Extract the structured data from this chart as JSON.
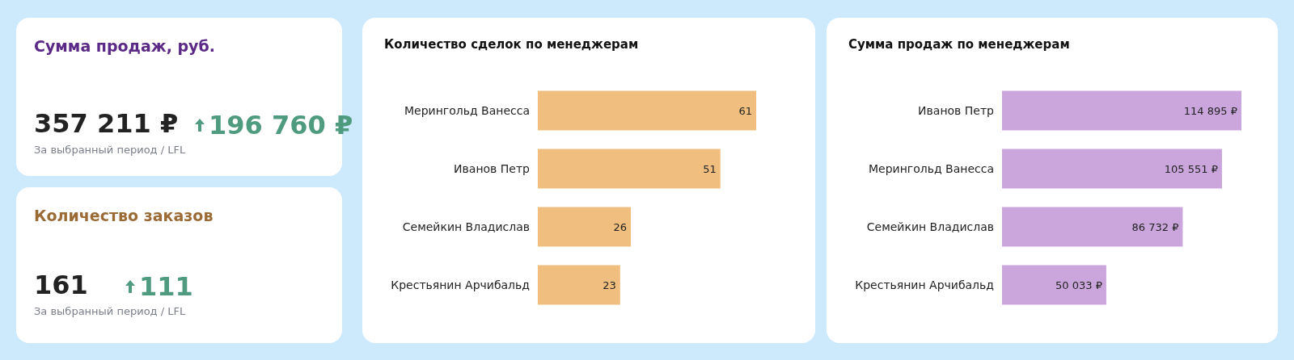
{
  "chart_data": [
    {
      "type": "other",
      "title": "Сумма продаж, руб.",
      "annotations": [
        "357 211 ₽",
        "196 760 ₽",
        "За выбранный период / LFL"
      ]
    },
    {
      "type": "other",
      "title": "Количество заказов",
      "annotations": [
        "161",
        "111",
        "За выбранный период / LFL"
      ]
    },
    {
      "type": "bar",
      "title": "Количество сделок по менеджерам",
      "orientation": "horizontal",
      "categories": [
        "Мерингольд Ванесса",
        "Иванов Петр",
        "Семейкин Владислав",
        "Крестьянин Арчибальд"
      ],
      "values": [
        61,
        51,
        26,
        23
      ],
      "color": "#f0be7e",
      "data_labels": true
    },
    {
      "type": "bar",
      "title": "Сумма продаж по менеджерам",
      "orientation": "horizontal",
      "categories": [
        "Иванов Петр",
        "Мерингольд Ванесса",
        "Семейкин Владислав",
        "Крестьянин Арчибальд"
      ],
      "values": [
        114895,
        105551,
        86732,
        50033
      ],
      "color": "#cba6dd",
      "value_labels": [
        "114 895 ₽",
        "105 551 ₽",
        "86 732 ₽",
        "50 033 ₽"
      ]
    }
  ]
}
